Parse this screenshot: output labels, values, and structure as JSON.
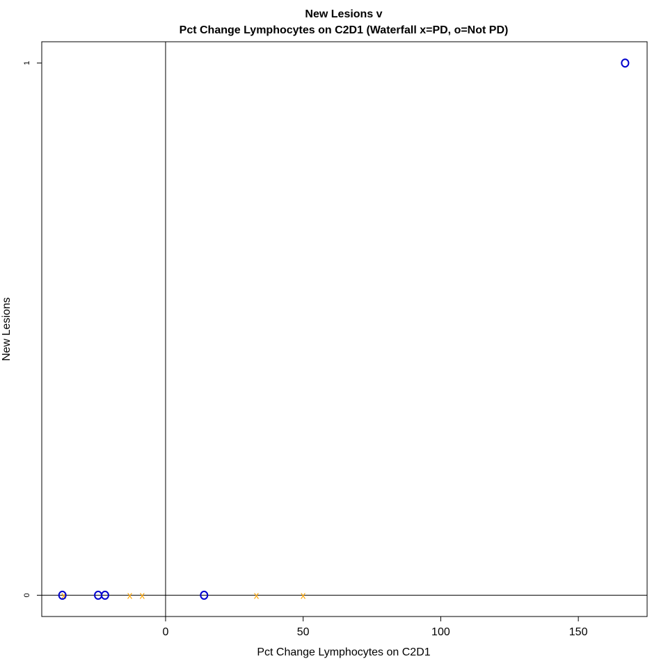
{
  "chart_data": {
    "type": "scatter",
    "title_line1": "New Lesions v",
    "title_line2": "Pct Change Lymphocytes on C2D1 (Waterfall x=PD, o=Not PD)",
    "xlabel": "Pct Change Lymphocytes on C2D1",
    "ylabel": "New Lesions",
    "xlim": [
      -45,
      175
    ],
    "ylim": [
      -0.04,
      1.04
    ],
    "xticks": [
      0,
      50,
      100,
      150
    ],
    "yticks": [
      0,
      1
    ],
    "reference_lines": {
      "vertical_x": 0,
      "horizontal_y": 0
    },
    "grid": false,
    "colors": {
      "pd": "#FFA500",
      "not_pd": "#0000CD"
    },
    "series": [
      {
        "name": "x=PD",
        "marker": "x",
        "color": "#FFA500",
        "points": [
          {
            "x": -37,
            "y": 0
          },
          {
            "x": -13,
            "y": 0
          },
          {
            "x": -8.5,
            "y": 0
          },
          {
            "x": 33,
            "y": 0
          },
          {
            "x": 50,
            "y": 0
          }
        ]
      },
      {
        "name": "o=Not PD",
        "marker": "o",
        "color": "#0000CD",
        "points": [
          {
            "x": -37.5,
            "y": 0
          },
          {
            "x": -24.5,
            "y": 0
          },
          {
            "x": -22,
            "y": 0
          },
          {
            "x": 14,
            "y": 0
          },
          {
            "x": 167,
            "y": 1
          }
        ]
      }
    ]
  }
}
